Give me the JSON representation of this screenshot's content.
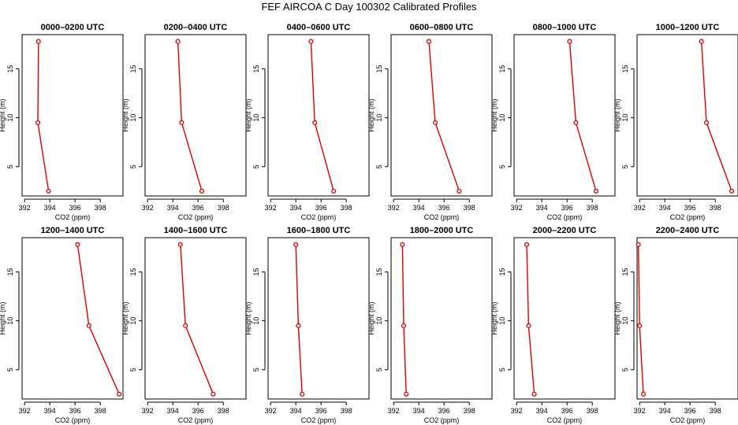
{
  "title": "FEF AIRCOA C  Day 100302  Calibrated Profiles",
  "colors": {
    "series": "#dd0000",
    "axis": "#000000"
  },
  "chart_data": [
    {
      "type": "line",
      "title": "0000–0200 UTC",
      "xlabel": "CO2 (ppm)",
      "ylabel": "Height (m)",
      "xlim": [
        391.8,
        399.8
      ],
      "ylim": [
        2.0,
        18.5
      ],
      "xticks": [
        392,
        394,
        396,
        398
      ],
      "yticks": [
        5,
        10,
        15
      ],
      "x": [
        393.1,
        393.05,
        393.9
      ],
      "y": [
        17.8,
        9.5,
        2.5
      ]
    },
    {
      "type": "line",
      "title": "0200–0400 UTC",
      "xlabel": "CO2 (ppm)",
      "ylabel": "Height (m)",
      "xlim": [
        391.8,
        399.8
      ],
      "ylim": [
        2.0,
        18.5
      ],
      "xticks": [
        392,
        394,
        396,
        398
      ],
      "yticks": [
        5,
        10,
        15
      ],
      "x": [
        394.4,
        394.7,
        396.3
      ],
      "y": [
        17.8,
        9.5,
        2.5
      ]
    },
    {
      "type": "line",
      "title": "0400–0600 UTC",
      "xlabel": "CO2 (ppm)",
      "ylabel": "Height (m)",
      "xlim": [
        391.8,
        399.8
      ],
      "ylim": [
        2.0,
        18.5
      ],
      "xticks": [
        392,
        394,
        396,
        398
      ],
      "yticks": [
        5,
        10,
        15
      ],
      "x": [
        395.2,
        395.5,
        397.0
      ],
      "y": [
        17.8,
        9.5,
        2.5
      ]
    },
    {
      "type": "line",
      "title": "0600–0800 UTC",
      "xlabel": "CO2 (ppm)",
      "ylabel": "Height (m)",
      "xlim": [
        391.8,
        399.8
      ],
      "ylim": [
        2.0,
        18.5
      ],
      "xticks": [
        392,
        394,
        396,
        398
      ],
      "yticks": [
        5,
        10,
        15
      ],
      "x": [
        394.8,
        395.3,
        397.2
      ],
      "y": [
        17.8,
        9.5,
        2.5
      ]
    },
    {
      "type": "line",
      "title": "0800–1000 UTC",
      "xlabel": "CO2 (ppm)",
      "ylabel": "Height (m)",
      "xlim": [
        391.8,
        399.8
      ],
      "ylim": [
        2.0,
        18.5
      ],
      "xticks": [
        392,
        394,
        396,
        398
      ],
      "yticks": [
        5,
        10,
        15
      ],
      "x": [
        396.2,
        396.7,
        398.3
      ],
      "y": [
        17.8,
        9.5,
        2.5
      ]
    },
    {
      "type": "line",
      "title": "1000–1200 UTC",
      "xlabel": "CO2 (ppm)",
      "ylabel": "Height (m)",
      "xlim": [
        391.8,
        399.8
      ],
      "ylim": [
        2.0,
        18.5
      ],
      "xticks": [
        392,
        394,
        396,
        398
      ],
      "yticks": [
        5,
        10,
        15
      ],
      "x": [
        396.9,
        397.3,
        399.3
      ],
      "y": [
        17.8,
        9.5,
        2.5
      ]
    },
    {
      "type": "line",
      "title": "1200–1400 UTC",
      "xlabel": "CO2 (ppm)",
      "ylabel": "Height (m)",
      "xlim": [
        391.8,
        399.8
      ],
      "ylim": [
        2.0,
        18.5
      ],
      "xticks": [
        392,
        394,
        396,
        398
      ],
      "yticks": [
        5,
        10,
        15
      ],
      "x": [
        396.2,
        397.1,
        399.5
      ],
      "y": [
        17.8,
        9.5,
        2.5
      ]
    },
    {
      "type": "line",
      "title": "1400–1600 UTC",
      "xlabel": "CO2 (ppm)",
      "ylabel": "Height (m)",
      "xlim": [
        391.8,
        399.8
      ],
      "ylim": [
        2.0,
        18.5
      ],
      "xticks": [
        392,
        394,
        396,
        398
      ],
      "yticks": [
        5,
        10,
        15
      ],
      "x": [
        394.6,
        395.0,
        397.2
      ],
      "y": [
        17.8,
        9.5,
        2.5
      ]
    },
    {
      "type": "line",
      "title": "1600–1800 UTC",
      "xlabel": "CO2 (ppm)",
      "ylabel": "Height (m)",
      "xlim": [
        391.8,
        399.8
      ],
      "ylim": [
        2.0,
        18.5
      ],
      "xticks": [
        392,
        394,
        396,
        398
      ],
      "yticks": [
        5,
        10,
        15
      ],
      "x": [
        394.0,
        394.2,
        394.5
      ],
      "y": [
        17.8,
        9.5,
        2.5
      ]
    },
    {
      "type": "line",
      "title": "1800–2000 UTC",
      "xlabel": "CO2 (ppm)",
      "ylabel": "Height (m)",
      "xlim": [
        391.8,
        399.8
      ],
      "ylim": [
        2.0,
        18.5
      ],
      "xticks": [
        392,
        394,
        396,
        398
      ],
      "yticks": [
        5,
        10,
        15
      ],
      "x": [
        392.7,
        392.8,
        393.0
      ],
      "y": [
        17.8,
        9.5,
        2.5
      ]
    },
    {
      "type": "line",
      "title": "2000–2200 UTC",
      "xlabel": "CO2 (ppm)",
      "ylabel": "Height (m)",
      "xlim": [
        391.8,
        399.8
      ],
      "ylim": [
        2.0,
        18.5
      ],
      "xticks": [
        392,
        394,
        396,
        398
      ],
      "yticks": [
        5,
        10,
        15
      ],
      "x": [
        392.8,
        392.95,
        393.4
      ],
      "y": [
        17.8,
        9.5,
        2.5
      ]
    },
    {
      "type": "line",
      "title": "2200–2400 UTC",
      "xlabel": "CO2 (ppm)",
      "ylabel": "Height (m)",
      "xlim": [
        391.8,
        399.8
      ],
      "ylim": [
        2.0,
        18.5
      ],
      "xticks": [
        392,
        394,
        396,
        398
      ],
      "yticks": [
        5,
        10,
        15
      ],
      "x": [
        391.9,
        392.0,
        392.3
      ],
      "y": [
        17.8,
        9.5,
        2.5
      ]
    }
  ]
}
